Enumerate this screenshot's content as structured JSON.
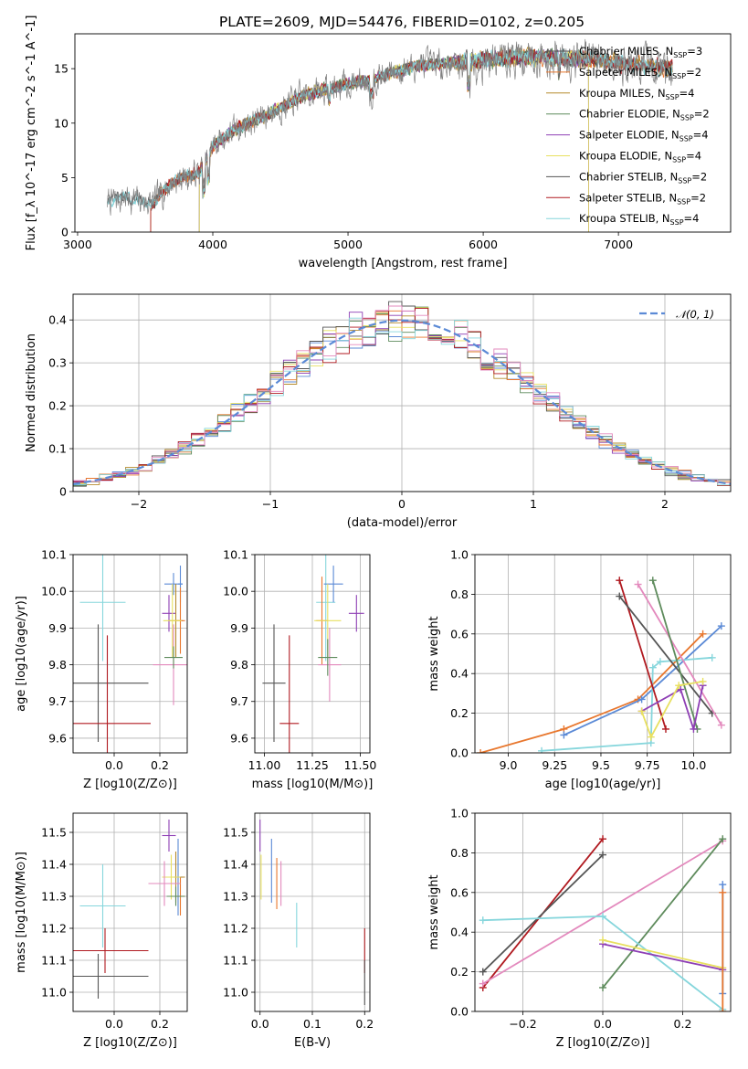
{
  "figure": {
    "title": "PLATE=2609, MJD=54476, FIBERID=0102, z=0.205"
  },
  "colors": {
    "c0": "#5b8ad6",
    "c1": "#e8772e",
    "c2": "#b58a2c",
    "c3": "#5e8b5c",
    "c4": "#8e3fb5",
    "c5": "#e8e060",
    "c6": "#555555",
    "c7": "#b01a20",
    "c8": "#86d6dc",
    "c9": "#e389bd"
  },
  "chart_data": [
    {
      "id": "spectrum",
      "type": "line",
      "xlabel": "wavelength [Angstrom, rest frame]",
      "ylabel": "Flux [f_λ 10^-17 erg cm^-2 s^-1 A^-1]",
      "xlim": [
        2980,
        7830
      ],
      "ylim": [
        0,
        18.2
      ],
      "xticks": [
        3000,
        4000,
        5000,
        6000,
        7000
      ],
      "yticks": [
        0,
        5,
        10,
        15
      ],
      "continuum": {
        "x": [
          3220,
          3350,
          3550,
          3700,
          3900,
          4000,
          4150,
          4300,
          4500,
          4700,
          4900,
          5000,
          5100,
          5300,
          5500,
          5800,
          6000,
          6200,
          6400,
          6600,
          6800,
          7000,
          7200,
          7400
        ],
        "y": [
          2.8,
          3.2,
          2.6,
          4.6,
          5.5,
          7.9,
          9.3,
          10.2,
          11.4,
          12.7,
          13.3,
          13.6,
          13.8,
          14.5,
          15.2,
          15.6,
          15.8,
          16.0,
          16.1,
          16.0,
          15.9,
          15.5,
          15.3,
          15.1
        ]
      },
      "models": [
        {
          "name": "Chabrier MILES",
          "nssp": "3",
          "color": "#555555",
          "xmin": 3540,
          "xmax": 7400
        },
        {
          "name": "Salpeter MILES",
          "nssp": "2",
          "color": "#e8772e",
          "xmin": 3540,
          "xmax": 7400
        },
        {
          "name": "Kroupa MILES",
          "nssp": "4",
          "color": "#b58a2c",
          "xmin": 3540,
          "xmax": 7400
        },
        {
          "name": "Chabrier ELODIE",
          "nssp": "2",
          "color": "#5e8b5c",
          "xmin": 3900,
          "xmax": 6780
        },
        {
          "name": "Salpeter ELODIE",
          "nssp": "4",
          "color": "#8e3fb5",
          "xmin": 3900,
          "xmax": 6780
        },
        {
          "name": "Kroupa ELODIE",
          "nssp": "4",
          "color": "#e8e060",
          "xmin": 3900,
          "xmax": 6780
        },
        {
          "name": "Chabrier STELIB",
          "nssp": "2",
          "color": "#555555",
          "xmin": 3220,
          "xmax": 7400
        },
        {
          "name": "Salpeter STELIB",
          "nssp": "2",
          "color": "#b01a20",
          "xmin": 3540,
          "xmax": 7400
        },
        {
          "name": "Kroupa STELIB",
          "nssp": "4",
          "color": "#86d6dc",
          "xmin": 3220,
          "xmax": 7400
        }
      ]
    },
    {
      "id": "residuals",
      "type": "line",
      "xlabel": "(data-model)/error",
      "ylabel": "Normed distribution",
      "xlim": [
        -2.5,
        2.5
      ],
      "ylim": [
        0,
        0.46
      ],
      "xticks": [
        -2,
        -1,
        0,
        1,
        2
      ],
      "yticks": [
        0.0,
        0.1,
        0.2,
        0.3,
        0.4
      ],
      "legend": "𝒩(0, 1)",
      "gaussian": {
        "mean": 0,
        "sigma": 1,
        "color": "#5b8ad6"
      },
      "histograms": {
        "bin_width": 0.1,
        "colors": [
          "#5b8ad6",
          "#e8772e",
          "#b58a2c",
          "#5e8b5c",
          "#8e3fb5",
          "#e8e060",
          "#555555",
          "#b01a20",
          "#86d6dc",
          "#e389bd"
        ]
      }
    },
    {
      "id": "age_vs_Z",
      "type": "scatter",
      "xlabel": "Z [log10(Z/Z⊙)]",
      "ylabel": "age [log10(age/yr)]",
      "xlim": [
        -0.18,
        0.32
      ],
      "ylim": [
        9.56,
        10.1
      ],
      "xticks": [
        0.0,
        0.2
      ],
      "yticks": [
        9.6,
        9.7,
        9.8,
        9.9,
        10.0,
        10.1
      ],
      "points": [
        {
          "x": -0.05,
          "y": 9.97,
          "xerr": 0.1,
          "yerr": 0.16,
          "color": "#86d6dc"
        },
        {
          "x": -0.07,
          "y": 9.75,
          "xerr": 0.22,
          "yerr": 0.16,
          "color": "#555555"
        },
        {
          "x": -0.03,
          "y": 9.64,
          "xerr": 0.19,
          "yerr": 0.24,
          "color": "#b01a20"
        },
        {
          "x": 0.26,
          "y": 10.02,
          "xerr": 0.04,
          "yerr": 0.03,
          "color": "#5b8ad6"
        },
        {
          "x": 0.29,
          "y": 10.02,
          "xerr": 0.01,
          "yerr": 0.05,
          "color": "#5b8ad6"
        },
        {
          "x": 0.24,
          "y": 9.94,
          "xerr": 0.03,
          "yerr": 0.05,
          "color": "#8e3fb5"
        },
        {
          "x": 0.27,
          "y": 9.92,
          "xerr": 0.03,
          "yerr": 0.1,
          "color": "#b58a2c"
        },
        {
          "x": 0.29,
          "y": 9.92,
          "xerr": 0.02,
          "yerr": 0.09,
          "color": "#e8772e"
        },
        {
          "x": 0.255,
          "y": 9.92,
          "xerr": 0.04,
          "yerr": 0.1,
          "color": "#e8e060"
        },
        {
          "x": 0.26,
          "y": 9.8,
          "xerr": 0.09,
          "yerr": 0.11,
          "color": "#e389bd"
        },
        {
          "x": 0.26,
          "y": 9.82,
          "xerr": 0.04,
          "yerr": 0.03,
          "color": "#5e8b5c"
        }
      ]
    },
    {
      "id": "age_vs_mass",
      "type": "scatter",
      "xlabel": "mass [log10(M/M⊙)]",
      "ylabel": "",
      "xlim": [
        10.95,
        11.55
      ],
      "ylim": [
        9.56,
        10.1
      ],
      "xticks": [
        11.0,
        11.25,
        11.5
      ],
      "yticks": [
        9.6,
        9.7,
        9.8,
        9.9,
        10.0,
        10.1
      ],
      "points": [
        {
          "x": 11.32,
          "y": 9.97,
          "xerr": 0.05,
          "yerr": 0.16,
          "color": "#86d6dc"
        },
        {
          "x": 11.05,
          "y": 9.75,
          "xerr": 0.06,
          "yerr": 0.16,
          "color": "#555555"
        },
        {
          "x": 11.13,
          "y": 9.64,
          "xerr": 0.05,
          "yerr": 0.24,
          "color": "#b01a20"
        },
        {
          "x": 11.36,
          "y": 10.02,
          "xerr": 0.05,
          "yerr": 0.05,
          "color": "#5b8ad6"
        },
        {
          "x": 11.48,
          "y": 9.94,
          "xerr": 0.04,
          "yerr": 0.05,
          "color": "#8e3fb5"
        },
        {
          "x": 11.3,
          "y": 9.92,
          "xerr": 0.03,
          "yerr": 0.12,
          "color": "#e8772e"
        },
        {
          "x": 11.33,
          "y": 9.92,
          "xerr": 0.07,
          "yerr": 0.1,
          "color": "#e8e060"
        },
        {
          "x": 11.34,
          "y": 9.8,
          "xerr": 0.06,
          "yerr": 0.1,
          "color": "#e389bd"
        },
        {
          "x": 11.33,
          "y": 9.82,
          "xerr": 0.05,
          "yerr": 0.05,
          "color": "#5e8b5c"
        }
      ]
    },
    {
      "id": "massweight_vs_age",
      "type": "line",
      "xlabel": "age [log10(age/yr)]",
      "ylabel": "mass weight",
      "xlim": [
        8.82,
        10.2
      ],
      "ylim": [
        0,
        1.0
      ],
      "xticks": [
        9.0,
        9.25,
        9.5,
        9.75,
        10.0
      ],
      "yticks": [
        0.0,
        0.2,
        0.4,
        0.6,
        0.8,
        1.0
      ],
      "series": [
        {
          "color": "#e8772e",
          "x": [
            8.85,
            9.3,
            9.7,
            10.05
          ],
          "y": [
            0.0,
            0.12,
            0.27,
            0.6
          ]
        },
        {
          "color": "#5b8ad6",
          "x": [
            9.3,
            9.72,
            10.15
          ],
          "y": [
            0.09,
            0.27,
            0.64
          ]
        },
        {
          "color": "#86d6dc",
          "x": [
            9.18,
            9.77,
            9.78,
            9.82,
            10.1
          ],
          "y": [
            0.01,
            0.05,
            0.43,
            0.46,
            0.48
          ]
        },
        {
          "color": "#b01a20",
          "x": [
            9.6,
            9.85
          ],
          "y": [
            0.87,
            0.12
          ]
        },
        {
          "color": "#555555",
          "x": [
            9.6,
            10.1
          ],
          "y": [
            0.79,
            0.2
          ]
        },
        {
          "color": "#e389bd",
          "x": [
            9.7,
            10.15
          ],
          "y": [
            0.85,
            0.14
          ]
        },
        {
          "color": "#5e8b5c",
          "x": [
            9.78,
            10.02
          ],
          "y": [
            0.87,
            0.12
          ]
        },
        {
          "color": "#8e3fb5",
          "x": [
            9.72,
            9.93,
            10.0,
            10.05
          ],
          "y": [
            0.21,
            0.32,
            0.12,
            0.34
          ]
        },
        {
          "color": "#e8e060",
          "x": [
            9.72,
            9.77,
            9.92,
            10.05
          ],
          "y": [
            0.21,
            0.08,
            0.34,
            0.36
          ]
        }
      ]
    },
    {
      "id": "mass_vs_Z",
      "type": "scatter",
      "xlabel": "Z [log10(Z/Z⊙)]",
      "ylabel": "mass [log10(M/M⊙)]",
      "xlim": [
        -0.18,
        0.32
      ],
      "ylim": [
        10.94,
        11.56
      ],
      "xticks": [
        0.0,
        0.2
      ],
      "yticks": [
        11.0,
        11.1,
        11.2,
        11.3,
        11.4,
        11.5
      ],
      "points": [
        {
          "x": -0.05,
          "y": 11.27,
          "xerr": 0.1,
          "yerr": 0.13,
          "color": "#86d6dc"
        },
        {
          "x": -0.07,
          "y": 11.05,
          "xerr": 0.22,
          "yerr": 0.07,
          "color": "#555555"
        },
        {
          "x": -0.04,
          "y": 11.13,
          "xerr": 0.19,
          "yerr": 0.07,
          "color": "#b01a20"
        },
        {
          "x": 0.24,
          "y": 11.49,
          "xerr": 0.03,
          "yerr": 0.05,
          "color": "#8e3fb5"
        },
        {
          "x": 0.28,
          "y": 11.36,
          "xerr": 0.02,
          "yerr": 0.12,
          "color": "#5b8ad6"
        },
        {
          "x": 0.29,
          "y": 11.3,
          "xerr": 0.02,
          "yerr": 0.06,
          "color": "#e8772e"
        },
        {
          "x": 0.27,
          "y": 11.36,
          "xerr": 0.04,
          "yerr": 0.08,
          "color": "#b58a2c"
        },
        {
          "x": 0.25,
          "y": 11.36,
          "xerr": 0.04,
          "yerr": 0.07,
          "color": "#e8e060"
        },
        {
          "x": 0.22,
          "y": 11.34,
          "xerr": 0.07,
          "yerr": 0.07,
          "color": "#e389bd"
        },
        {
          "x": 0.27,
          "y": 11.3,
          "xerr": 0.04,
          "yerr": 0.03,
          "color": "#5e8b5c"
        }
      ]
    },
    {
      "id": "mass_vs_ebv",
      "type": "scatter",
      "xlabel": "E(B-V)",
      "ylabel": "",
      "xlim": [
        -0.01,
        0.21
      ],
      "ylim": [
        10.94,
        11.56
      ],
      "xticks": [
        0.0,
        0.1,
        0.2
      ],
      "yticks": [
        11.0,
        11.1,
        11.2,
        11.3,
        11.4,
        11.5
      ],
      "points": [
        {
          "x": 0.0,
          "y": 11.49,
          "xerr": 0.0,
          "yerr": 0.05,
          "color": "#8e3fb5"
        },
        {
          "x": 0.002,
          "y": 11.36,
          "xerr": 0.0,
          "yerr": 0.07,
          "color": "#e8e060"
        },
        {
          "x": 0.022,
          "y": 11.38,
          "xerr": 0.0,
          "yerr": 0.1,
          "color": "#5b8ad6"
        },
        {
          "x": 0.032,
          "y": 11.34,
          "xerr": 0.0,
          "yerr": 0.08,
          "color": "#e8772e"
        },
        {
          "x": 0.04,
          "y": 11.34,
          "xerr": 0.0,
          "yerr": 0.07,
          "color": "#e389bd"
        },
        {
          "x": 0.07,
          "y": 11.21,
          "xerr": 0.0,
          "yerr": 0.07,
          "color": "#86d6dc"
        },
        {
          "x": 0.2,
          "y": 11.13,
          "xerr": 0.0,
          "yerr": 0.07,
          "color": "#b01a20"
        },
        {
          "x": 0.2,
          "y": 11.03,
          "xerr": 0.0,
          "yerr": 0.07,
          "color": "#555555"
        }
      ]
    },
    {
      "id": "massweight_vs_Z",
      "type": "line",
      "xlabel": "Z [log10(Z/Z⊙)]",
      "ylabel": "mass weight",
      "xlim": [
        -0.32,
        0.32
      ],
      "ylim": [
        0,
        1.0
      ],
      "xticks": [
        -0.2,
        0.0,
        0.2
      ],
      "yticks": [
        0.0,
        0.2,
        0.4,
        0.6,
        0.8,
        1.0
      ],
      "series": [
        {
          "color": "#b01a20",
          "x": [
            -0.3,
            0.0
          ],
          "y": [
            0.12,
            0.87
          ]
        },
        {
          "color": "#555555",
          "x": [
            -0.3,
            0.0
          ],
          "y": [
            0.2,
            0.79
          ]
        },
        {
          "color": "#e389bd",
          "x": [
            -0.3,
            0.3
          ],
          "y": [
            0.14,
            0.86
          ]
        },
        {
          "color": "#5e8b5c",
          "x": [
            0.0,
            0.3
          ],
          "y": [
            0.12,
            0.87
          ]
        },
        {
          "color": "#86d6dc",
          "x": [
            -0.3,
            0.0,
            0.3
          ],
          "y": [
            0.46,
            0.48,
            0.01
          ]
        },
        {
          "color": "#8e3fb5",
          "x": [
            0.0,
            0.3
          ],
          "y": [
            0.34,
            0.21
          ]
        },
        {
          "color": "#e8e060",
          "x": [
            0.0,
            0.3
          ],
          "y": [
            0.36,
            0.22
          ]
        },
        {
          "color": "#5b8ad6",
          "x": [
            0.3,
            0.3
          ],
          "y": [
            0.09,
            0.64
          ]
        },
        {
          "color": "#e8772e",
          "x": [
            0.3,
            0.3
          ],
          "y": [
            0.0,
            0.6
          ]
        }
      ]
    }
  ]
}
